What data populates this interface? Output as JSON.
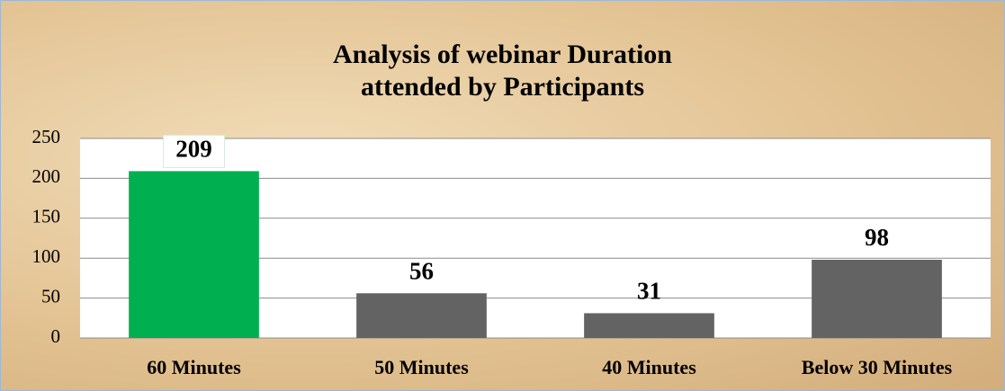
{
  "chart_data": {
    "type": "bar",
    "title": "Analysis of webinar Duration attended by Participants",
    "categories": [
      "60 Minutes",
      "50 Minutes",
      "40 Minutes",
      "Below 30 Minutes"
    ],
    "values": [
      209,
      56,
      31,
      98
    ],
    "colors": [
      "#00b050",
      "#636363",
      "#636363",
      "#636363"
    ],
    "ylim": [
      0,
      250
    ],
    "yticks": [
      0,
      50,
      100,
      150,
      200,
      250
    ],
    "grid": true
  }
}
